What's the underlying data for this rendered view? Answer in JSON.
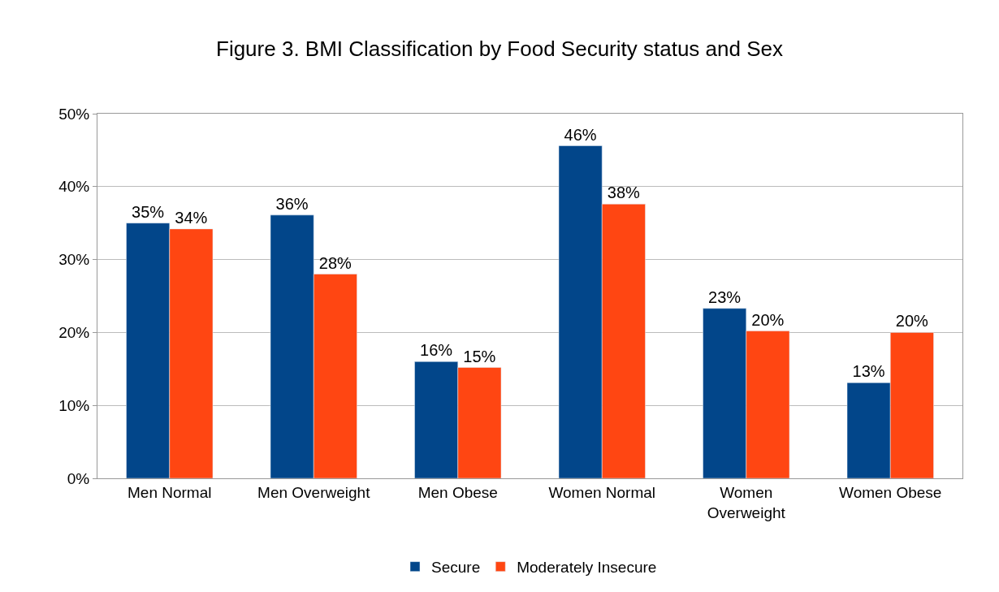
{
  "chart_data": {
    "type": "bar",
    "title": "Figure 3. BMI Classification by Food Security status and Sex",
    "categories": [
      "Men Normal",
      "Men Overweight",
      "Men Obese",
      "Women Normal",
      "Women Overweight",
      "Women Obese"
    ],
    "series": [
      {
        "name": "Secure",
        "color": "#02468a",
        "values": [
          35.0,
          36.1,
          16.0,
          45.6,
          23.3,
          13.1
        ],
        "value_labels": [
          "35%",
          "36%",
          "16%",
          "46%",
          "23%",
          "13%"
        ]
      },
      {
        "name": "Moderately Insecure",
        "color": "#ff4612",
        "values": [
          34.2,
          28.0,
          15.2,
          37.6,
          20.2,
          20.0
        ],
        "value_labels": [
          "34%",
          "28%",
          "15%",
          "38%",
          "20%",
          "20%"
        ]
      }
    ],
    "ylim": [
      0,
      50
    ],
    "yticks": [
      {
        "value": 0,
        "label": "0%"
      },
      {
        "value": 10,
        "label": "10%"
      },
      {
        "value": 20,
        "label": "20%"
      },
      {
        "value": 30,
        "label": "30%"
      },
      {
        "value": 40,
        "label": "40%"
      },
      {
        "value": 50,
        "label": "50%"
      }
    ],
    "grid": "y",
    "legend": "bottom"
  }
}
